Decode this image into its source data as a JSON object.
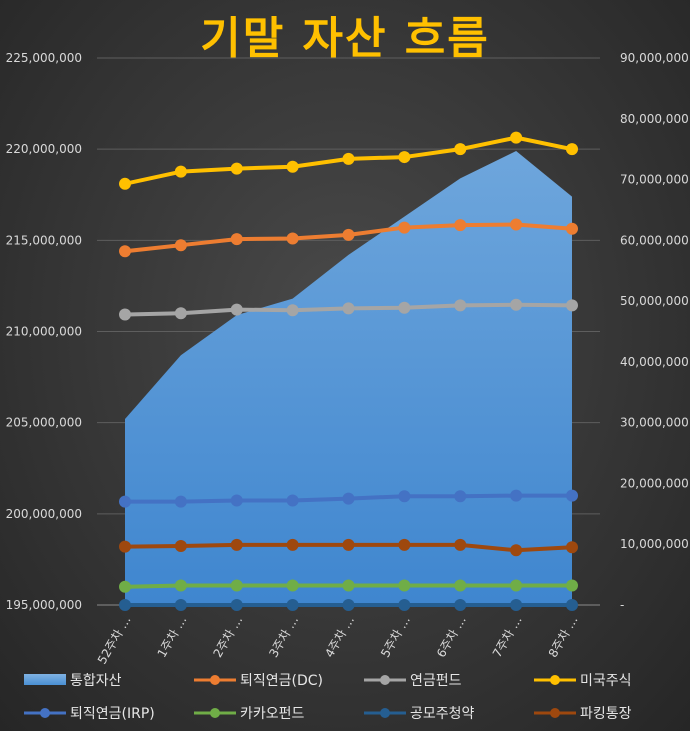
{
  "chart_data": {
    "type": "line",
    "title": "기말 자산 흐름",
    "categories": [
      "52주차 …",
      "1주차 …",
      "2주차 …",
      "3주차 …",
      "4주차 …",
      "5주차 …",
      "6주차 …",
      "7주차 …",
      "8주차 …"
    ],
    "y_left": {
      "range": [
        195000000,
        225000000
      ],
      "ticks": [
        "195,000,000",
        "200,000,000",
        "205,000,000",
        "210,000,000",
        "215,000,000",
        "220,000,000",
        "225,000,000"
      ],
      "tick_values": [
        195000000,
        200000000,
        205000000,
        210000000,
        215000000,
        220000000,
        225000000
      ]
    },
    "y_right": {
      "range": [
        0,
        90000000
      ],
      "ticks": [
        "-",
        "10,000,000",
        "20,000,000",
        "30,000,000",
        "40,000,000",
        "50,000,000",
        "60,000,000",
        "70,000,000",
        "80,000,000",
        "90,000,000"
      ],
      "tick_values": [
        0,
        10000000,
        20000000,
        30000000,
        40000000,
        50000000,
        60000000,
        70000000,
        80000000,
        90000000
      ]
    },
    "grid": true,
    "legend_position": "bottom",
    "series": [
      {
        "name": "통합자산",
        "type": "area",
        "axis": "left",
        "color": "#5b9bd5",
        "values": [
          205200000,
          208700000,
          210900000,
          211800000,
          214200000,
          216300000,
          218400000,
          219900000,
          217400000
        ]
      },
      {
        "name": "퇴직연금(DC)",
        "type": "line",
        "axis": "right",
        "color": "#ed7d31",
        "values": [
          58200000,
          59200000,
          60200000,
          60300000,
          60900000,
          62100000,
          62500000,
          62600000,
          61900000
        ]
      },
      {
        "name": "연금펀드",
        "type": "line",
        "axis": "right",
        "color": "#a5a5a5",
        "values": [
          47800000,
          48000000,
          48600000,
          48500000,
          48800000,
          48900000,
          49300000,
          49400000,
          49300000
        ]
      },
      {
        "name": "미국주식",
        "type": "line",
        "axis": "right",
        "color": "#ffc000",
        "values": [
          69300000,
          71300000,
          71800000,
          72100000,
          73400000,
          73700000,
          75000000,
          76900000,
          75000000
        ]
      },
      {
        "name": "퇴직연금(IRP)",
        "type": "line",
        "axis": "right",
        "color": "#4472c4",
        "values": [
          17000000,
          17000000,
          17200000,
          17200000,
          17500000,
          17900000,
          17900000,
          18000000,
          18000000
        ]
      },
      {
        "name": "카카오펀드",
        "type": "line",
        "axis": "right",
        "color": "#70ad47",
        "values": [
          3000000,
          3200000,
          3200000,
          3200000,
          3200000,
          3200000,
          3200000,
          3200000,
          3200000
        ]
      },
      {
        "name": "공모주청약",
        "type": "line",
        "axis": "right",
        "color": "#255e91",
        "values": [
          0,
          0,
          0,
          0,
          0,
          0,
          0,
          0,
          0
        ]
      },
      {
        "name": "파킹통장",
        "type": "line",
        "axis": "right",
        "color": "#9e480e",
        "values": [
          9600000,
          9700000,
          9900000,
          9900000,
          9900000,
          9900000,
          9900000,
          9000000,
          9500000
        ]
      }
    ]
  }
}
